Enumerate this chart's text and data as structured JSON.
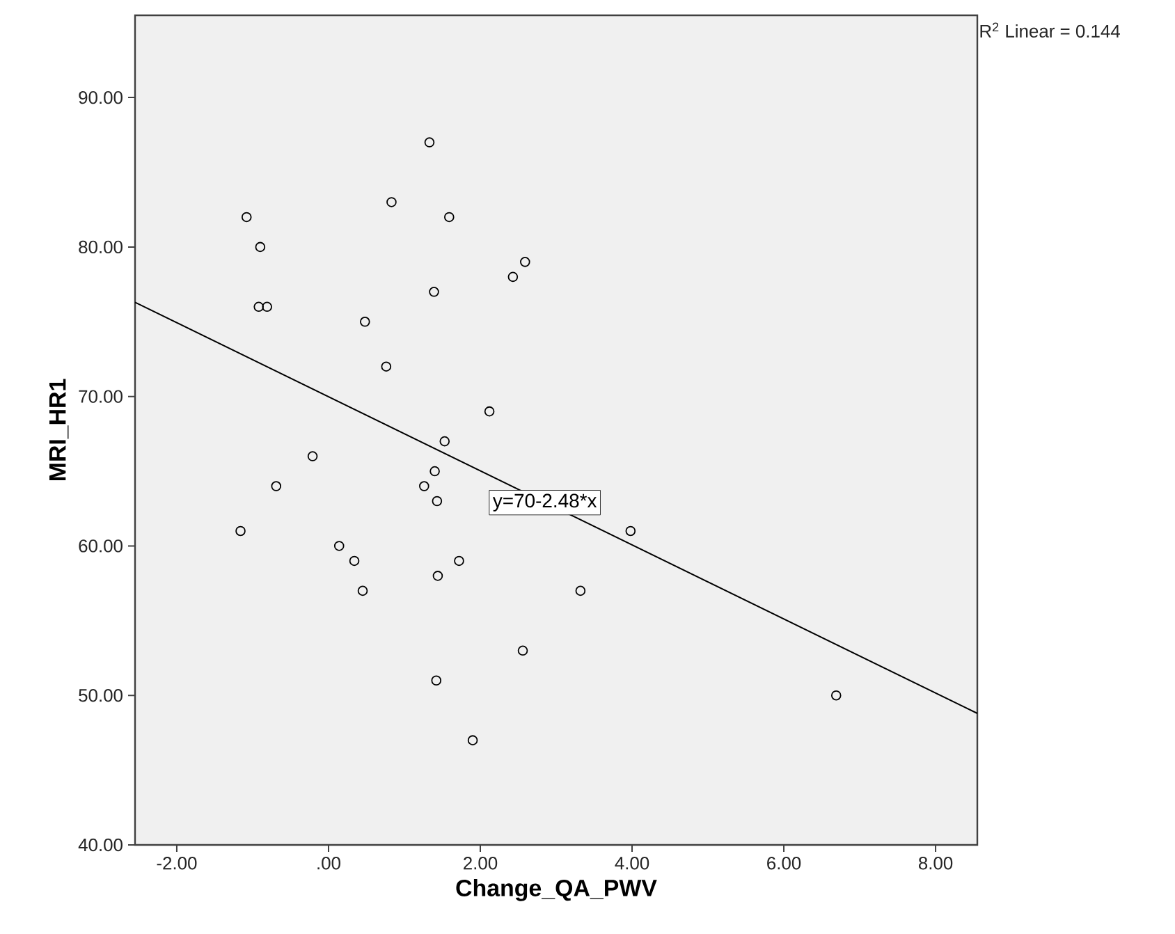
{
  "chart_data": {
    "type": "scatter",
    "xlabel": "Change_QA_PWV",
    "ylabel": "MRI_HR1",
    "marker": "circle",
    "xlim": [
      -2.55,
      8.55
    ],
    "ylim": [
      40,
      95.5
    ],
    "xticks": [
      {
        "value": -2,
        "label": "-2.00"
      },
      {
        "value": 0,
        "label": ".00"
      },
      {
        "value": 2,
        "label": "2.00"
      },
      {
        "value": 4,
        "label": "4.00"
      },
      {
        "value": 6,
        "label": "6.00"
      },
      {
        "value": 8,
        "label": "8.00"
      }
    ],
    "yticks": [
      {
        "value": 40,
        "label": "40.00"
      },
      {
        "value": 50,
        "label": "50.00"
      },
      {
        "value": 60,
        "label": "60.00"
      },
      {
        "value": 70,
        "label": "70.00"
      },
      {
        "value": 80,
        "label": "80.00"
      },
      {
        "value": 90,
        "label": "90.00"
      }
    ],
    "annotations": [
      {
        "text": "y=70-2.48*x",
        "x": 2.85,
        "y": 62.9
      },
      "R$^{2}$ Linear = 0.144"
    ],
    "series": [
      {
        "color": "#000000",
        "x": [
          -1.08,
          -0.9,
          -0.92,
          -0.81,
          1.33,
          0.83,
          1.59,
          2.59,
          2.43,
          1.39,
          0.48,
          0.76,
          2.12,
          1.53,
          -0.21,
          -0.69,
          1.4,
          1.26,
          1.43,
          -1.16,
          0.14,
          0.34,
          0.45,
          1.72,
          1.44,
          2.56,
          1.42,
          1.9,
          3.32,
          3.98,
          6.69
        ],
        "values": [
          82,
          80,
          76,
          76,
          87,
          83,
          82,
          79,
          78,
          77,
          75,
          72,
          69,
          67,
          66,
          64,
          65,
          64,
          63,
          61,
          60,
          59,
          57,
          59,
          58,
          53,
          51,
          47,
          57,
          61,
          50
        ]
      },
      {
        "type": "line",
        "color": "#000000",
        "marker": "none",
        "x": [
          -2.55,
          8.55
        ],
        "values": [
          76.3,
          48.8
        ]
      }
    ]
  }
}
